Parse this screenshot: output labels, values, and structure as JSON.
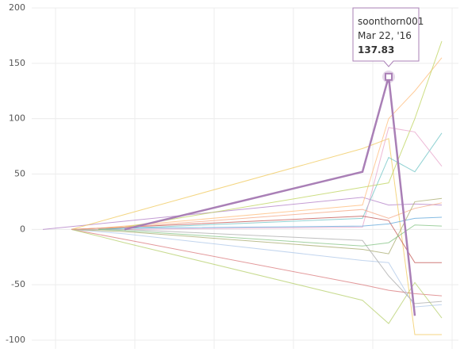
{
  "chart_data": {
    "type": "line",
    "categories": [
      null,
      null,
      null,
      null,
      null,
      null,
      null,
      null
    ],
    "ylim": [
      -100,
      200
    ],
    "yticks": [
      -100,
      -50,
      0,
      50,
      100,
      150,
      200
    ],
    "grid": true,
    "series": [
      {
        "color": "#b07cc6",
        "values": [
          0,
          2.6,
          5,
          7.4,
          29,
          22,
          23,
          22
        ]
      },
      {
        "color": "#f0c85a",
        "values": [
          null,
          0,
          6.8,
          13.4,
          73,
          82,
          -95,
          -95
        ]
      },
      {
        "color": "#d9777a",
        "values": [
          null,
          0,
          -4.5,
          -9,
          -50,
          -55,
          -58,
          -60
        ]
      },
      {
        "color": "#b5cf6b",
        "values": [
          null,
          0,
          -6,
          -12,
          -64,
          -85,
          -48,
          -80
        ]
      },
      {
        "color": "#aec7e8",
        "values": [
          null,
          0,
          -2,
          -4,
          -28,
          -30,
          -70,
          -68
        ]
      },
      {
        "color": "#ffbb78",
        "values": [
          null,
          0,
          1,
          3,
          22,
          100,
          125,
          155
        ]
      },
      {
        "color": "#6cc3c4",
        "values": [
          null,
          null,
          0,
          1,
          10,
          65,
          52,
          87
        ]
      },
      {
        "color": "#bcd35a",
        "values": [
          null,
          null,
          0,
          2,
          38,
          42,
          100,
          170
        ]
      },
      {
        "color": "#e7a1c8",
        "values": [
          null,
          null,
          null,
          0,
          2,
          92,
          88,
          57
        ]
      },
      {
        "color": "#c0504d",
        "values": [
          null,
          0,
          1,
          2,
          12,
          8,
          -30,
          -30
        ]
      },
      {
        "color": "#5da5da",
        "values": [
          null,
          null,
          0,
          1,
          3,
          5,
          10,
          11
        ]
      },
      {
        "color": "#a5a86a",
        "values": [
          null,
          0,
          -1,
          -2,
          -18,
          -22,
          25,
          28
        ]
      },
      {
        "color": "#aaaaaa",
        "values": [
          null,
          0,
          0,
          0,
          -10,
          -42,
          -67,
          -65
        ]
      },
      {
        "color": "#f4a582",
        "values": [
          null,
          0,
          1,
          2,
          18,
          10,
          19,
          24
        ]
      },
      {
        "color": "#82c182",
        "values": [
          null,
          null,
          0,
          -1,
          -15,
          -12,
          4,
          3
        ]
      },
      {
        "name": "soonthorn001",
        "color": "#a97fb6",
        "highlight": true,
        "values": [
          null,
          null,
          null,
          0,
          52,
          137.83,
          -78,
          null
        ]
      }
    ],
    "tooltip": {
      "series": 15,
      "point": 5,
      "name": "soonthorn001",
      "date": "Mar 22, '16",
      "value": 137.83
    }
  }
}
